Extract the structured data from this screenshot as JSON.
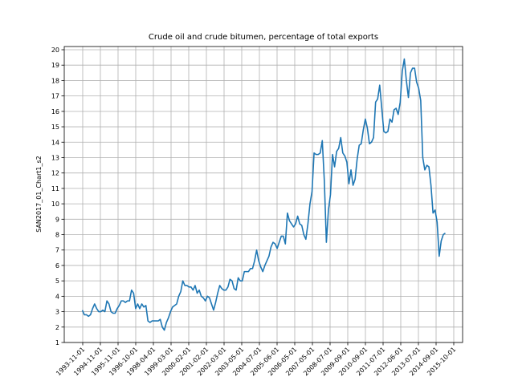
{
  "chart_data": {
    "type": "line",
    "title": "Crude oil and crude bitumen, percentage of total exports",
    "xlabel": "",
    "ylabel": "SAN2017_01_Chart1_s2",
    "grid": true,
    "ylim": [
      1,
      20
    ],
    "yticks": [
      1,
      2,
      3,
      4,
      5,
      6,
      7,
      8,
      9,
      10,
      11,
      12,
      13,
      14,
      15,
      16,
      17,
      18,
      19,
      20
    ],
    "xticks": [
      "1993-11-01",
      "1994-11-01",
      "1995-11-01",
      "1996-10-01",
      "1998-04-01",
      "1999-03-01",
      "2000-02-01",
      "2001-02-01",
      "2002-03-01",
      "2003-05-01",
      "2004-07-01",
      "2005-06-01",
      "2006-05-01",
      "2007-05-01",
      "2008-07-01",
      "2009-09-01",
      "2010-09-01",
      "2011-07-01",
      "2012-06-01",
      "2013-07-01",
      "2014-09-01",
      "2015-10-01"
    ],
    "color": "#1f77b4",
    "series": [
      {
        "values": [
          3.1,
          2.8,
          2.8,
          2.7,
          2.8,
          3.2,
          3.5,
          3.2,
          3.0,
          3.0,
          3.1,
          3.0,
          3.7,
          3.5,
          3.0,
          2.9,
          2.9,
          3.2,
          3.4,
          3.7,
          3.7,
          3.6,
          3.7,
          3.7,
          4.4,
          4.2,
          3.2,
          3.5,
          3.2,
          3.5,
          3.3,
          3.4,
          2.4,
          2.3,
          2.4,
          2.4,
          2.4,
          2.4,
          2.5,
          2.0,
          1.8,
          2.3,
          2.6,
          3.0,
          3.3,
          3.4,
          3.5,
          4.0,
          4.3,
          5.0,
          4.7,
          4.7,
          4.6,
          4.6,
          4.4,
          4.7,
          4.2,
          4.4,
          4.0,
          3.9,
          3.7,
          4.0,
          3.9,
          3.5,
          3.1,
          3.6,
          4.2,
          4.7,
          4.5,
          4.4,
          4.4,
          4.6,
          5.1,
          5.0,
          4.5,
          4.4,
          5.2,
          5.0,
          5.0,
          5.6,
          5.6,
          5.6,
          5.8,
          5.8,
          6.3,
          7.0,
          6.3,
          5.9,
          5.6,
          6.0,
          6.3,
          6.6,
          7.2,
          7.5,
          7.4,
          7.1,
          7.5,
          7.9,
          7.9,
          7.4,
          9.4,
          8.9,
          8.7,
          8.5,
          8.7,
          9.2,
          8.7,
          8.6,
          8.0,
          7.7,
          8.7,
          10.0,
          10.8,
          13.3,
          13.2,
          13.2,
          13.3,
          14.1,
          11.5,
          7.5,
          9.6,
          10.6,
          13.2,
          12.4,
          13.4,
          13.6,
          14.3,
          13.3,
          13.1,
          12.7,
          11.3,
          12.2,
          11.2,
          11.6,
          12.9,
          13.8,
          13.9,
          14.8,
          15.5,
          14.9,
          13.9,
          14.0,
          14.3,
          16.6,
          16.8,
          17.7,
          16.2,
          14.7,
          14.6,
          14.7,
          15.5,
          15.3,
          16.1,
          16.2,
          15.8,
          16.6,
          18.6,
          19.4,
          18.0,
          16.9,
          18.5,
          18.8,
          18.8,
          17.9,
          17.5,
          16.7,
          13.0,
          12.2,
          12.5,
          12.4,
          11.2,
          9.4,
          9.6,
          8.8,
          6.6,
          7.6,
          8.0,
          8.1
        ]
      }
    ]
  }
}
